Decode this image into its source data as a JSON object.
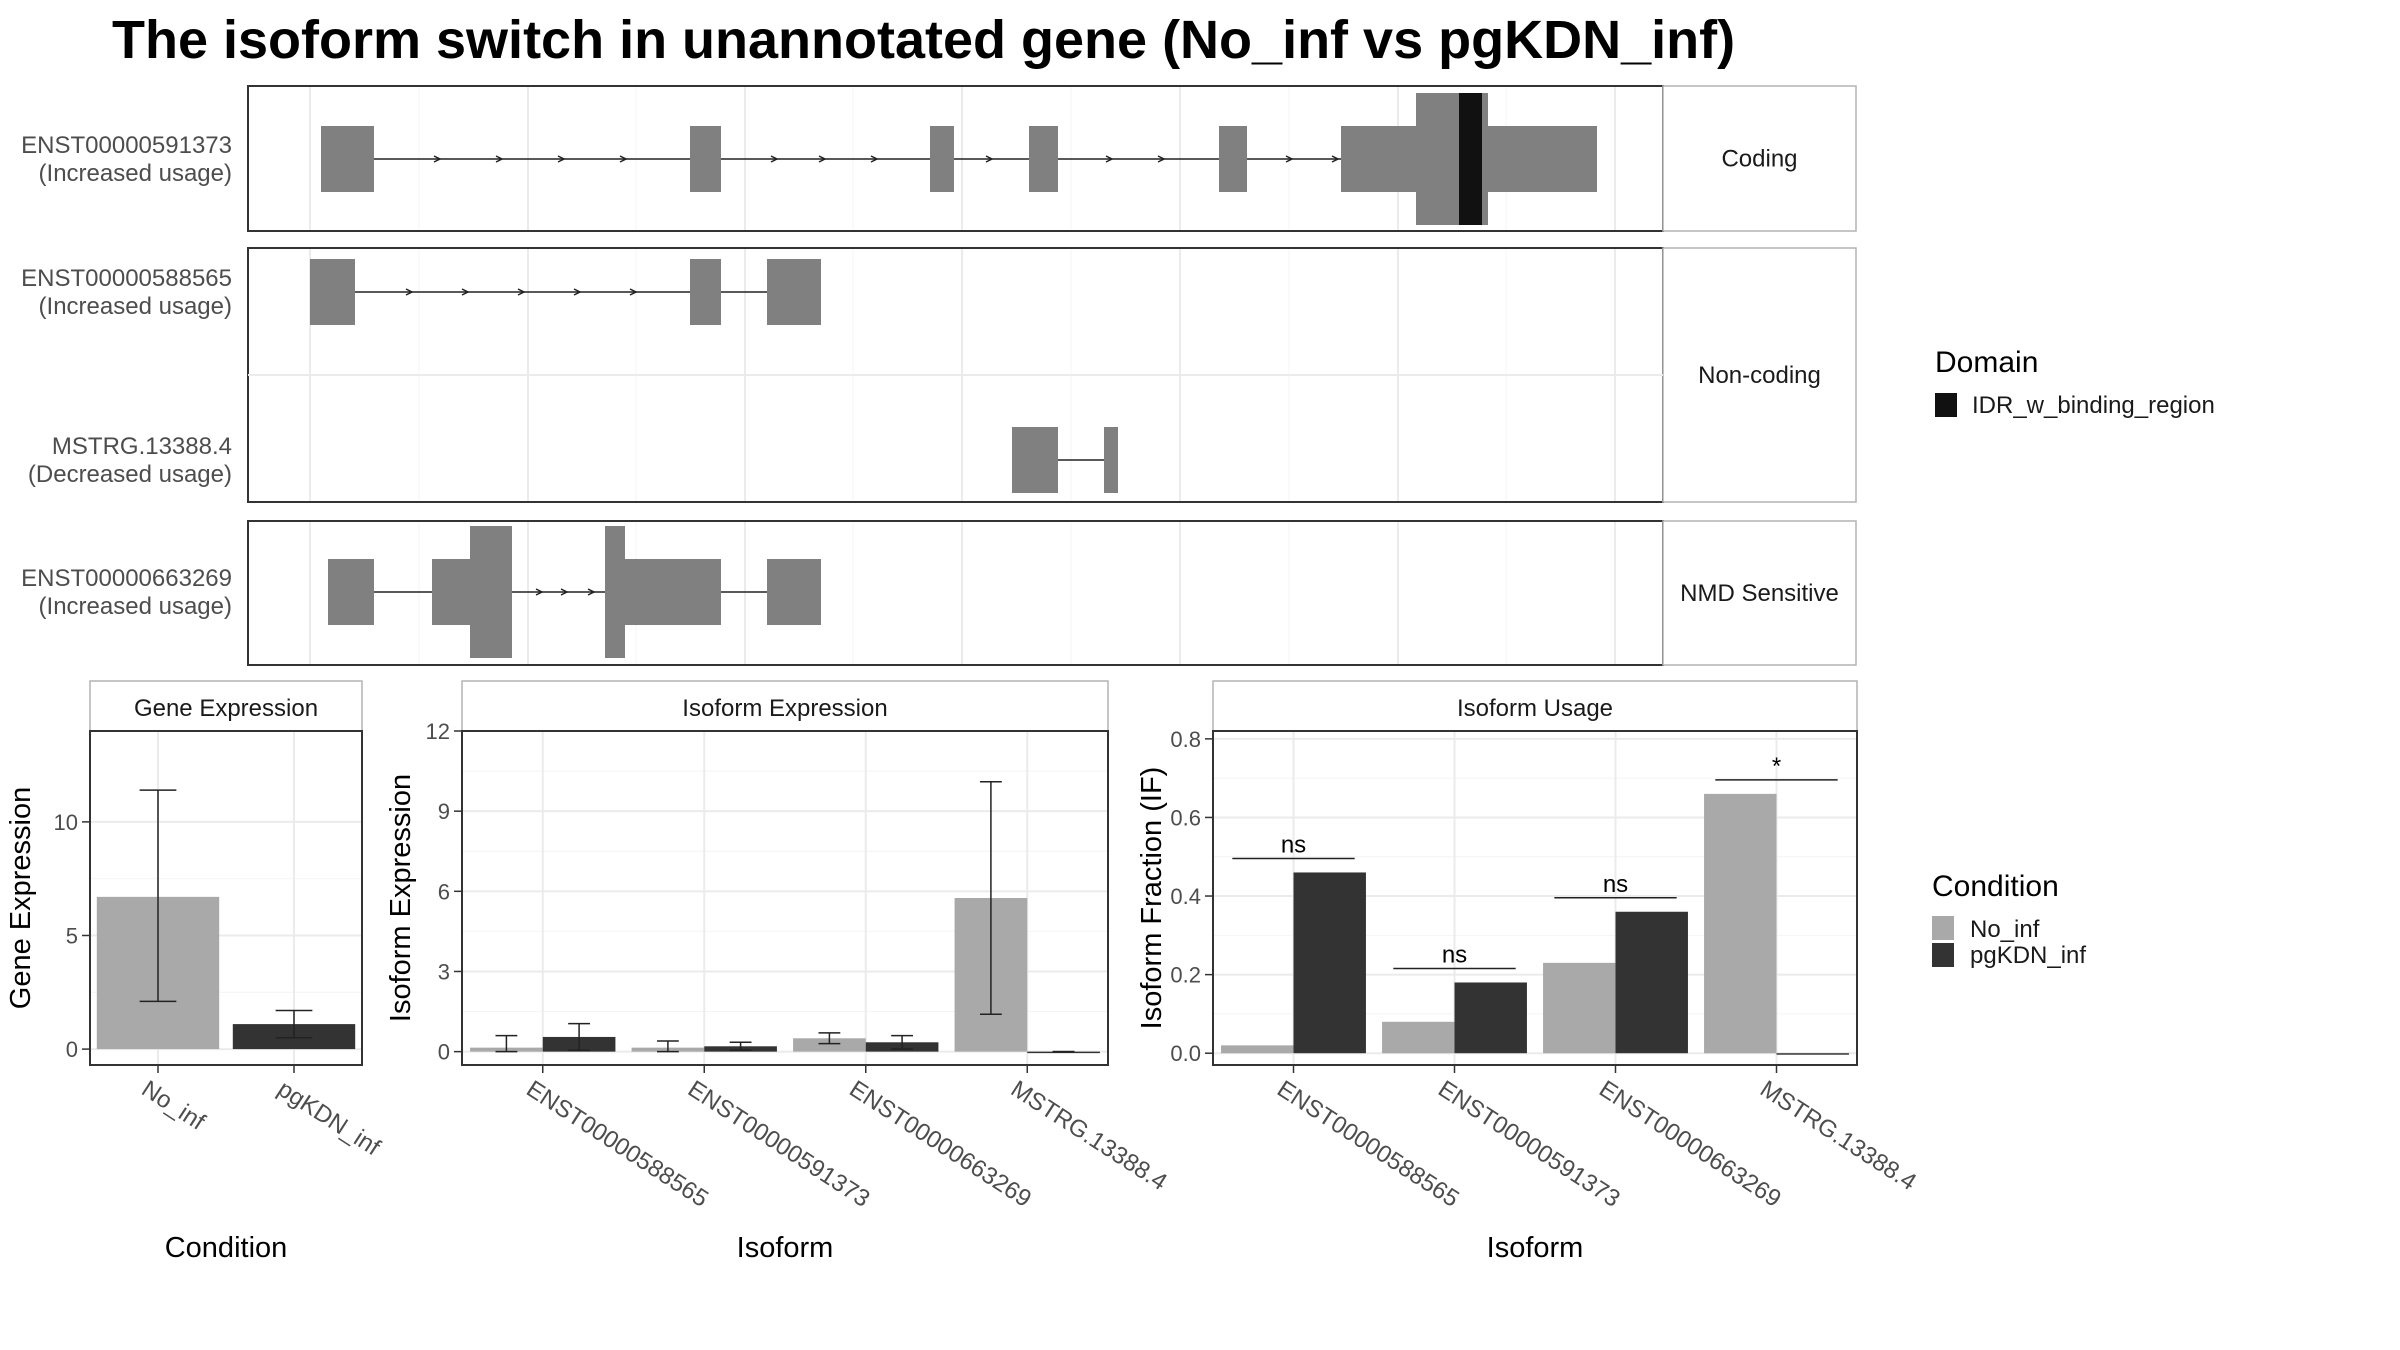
{
  "title": "The isoform switch in unannotated gene (No_inf vs pgKDN_inf)",
  "colors": {
    "no_inf": "#a9a9a9",
    "pgkdn_inf": "#333333",
    "exon": "#808080",
    "domain": "#111111",
    "grid": "#ebebeb",
    "strip_border": "#b3b3b3",
    "panel_border": "#333333",
    "text": "#000000",
    "axis_text": "#4d4d4d"
  },
  "structure": {
    "facets": [
      "Coding",
      "Non-coding",
      "NMD Sensitive"
    ],
    "transcripts": [
      {
        "id": "ENST00000591373",
        "status": "(Increased usage)",
        "facet": "Coding"
      },
      {
        "id": "ENST00000588565",
        "status": "(Increased usage)",
        "facet": "Non-coding"
      },
      {
        "id": "MSTRG.13388.4",
        "status": "(Decreased usage)",
        "facet": "Non-coding"
      },
      {
        "id": "ENST00000663269",
        "status": "(Increased usage)",
        "facet": "NMD Sensitive"
      }
    ],
    "legend": {
      "title": "Domain",
      "items": [
        "IDR_w_binding_region"
      ]
    }
  },
  "chart_data": [
    {
      "type": "bar",
      "panel": "Gene Expression",
      "xlabel": "Condition",
      "ylabel": "Gene Expression",
      "categories": [
        "No_inf",
        "pgKDN_inf"
      ],
      "values": [
        6.7,
        1.1
      ],
      "error_low": [
        2.1,
        0.5
      ],
      "error_high": [
        11.4,
        1.7
      ],
      "ylim": [
        -0.7,
        14.0
      ],
      "yticks": [
        0,
        5,
        10
      ]
    },
    {
      "type": "bar",
      "panel": "Isoform Expression",
      "xlabel": "Isoform",
      "ylabel": "Isoform Expression",
      "categories": [
        "ENST00000588565",
        "ENST00000591373",
        "ENST00000663269",
        "MSTRG.13388.4"
      ],
      "series": [
        {
          "name": "No_inf",
          "values": [
            0.15,
            0.15,
            0.5,
            5.75
          ],
          "error_low": [
            0.0,
            0.0,
            0.3,
            1.4
          ],
          "error_high": [
            0.6,
            0.4,
            0.7,
            10.1
          ]
        },
        {
          "name": "pgKDN_inf",
          "values": [
            0.55,
            0.2,
            0.35,
            0.0
          ],
          "error_low": [
            0.05,
            0.05,
            0.1,
            0.0
          ],
          "error_high": [
            1.05,
            0.35,
            0.6,
            0.0
          ]
        }
      ],
      "ylim": [
        -0.5,
        12.0
      ],
      "yticks": [
        0,
        3,
        6,
        9,
        12
      ]
    },
    {
      "type": "bar",
      "panel": "Isoform Usage",
      "xlabel": "Isoform",
      "ylabel": "Isoform Fraction (IF)",
      "categories": [
        "ENST00000588565",
        "ENST00000591373",
        "ENST00000663269",
        "MSTRG.13388.4"
      ],
      "series": [
        {
          "name": "No_inf",
          "values": [
            0.02,
            0.08,
            0.23,
            0.66
          ]
        },
        {
          "name": "pgKDN_inf",
          "values": [
            0.46,
            0.18,
            0.36,
            0.0
          ]
        }
      ],
      "significance": [
        "ns",
        "ns",
        "ns",
        "*"
      ],
      "ylim": [
        -0.03,
        0.82
      ],
      "yticks": [
        "0.0",
        "0.2",
        "0.4",
        "0.6",
        "0.8"
      ]
    }
  ],
  "condition_legend": {
    "title": "Condition",
    "items": [
      "No_inf",
      "pgKDN_inf"
    ]
  }
}
